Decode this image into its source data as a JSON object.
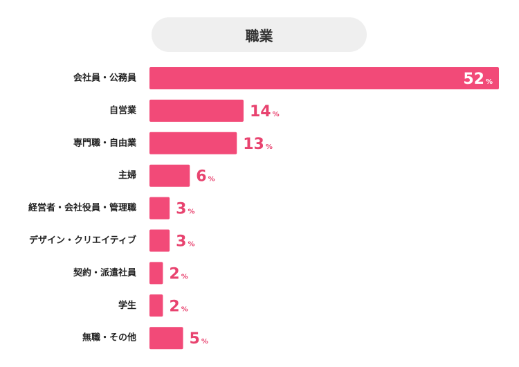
{
  "chart_data": {
    "type": "bar",
    "orientation": "horizontal",
    "title": "職業",
    "categories": [
      "会社員・公務員",
      "自営業",
      "専門職・自由業",
      "主婦",
      "経営者・会社役員・管理職",
      "デザイン・クリエイティブ",
      "契約・派遣社員",
      "学生",
      "無職・その他"
    ],
    "values": [
      52,
      14,
      13,
      6,
      3,
      3,
      2,
      2,
      5
    ],
    "unit": "%",
    "xlim": [
      0,
      52
    ],
    "grid": false,
    "legend": "none",
    "colors": {
      "bar": "#f24a78",
      "value_label": "#e8436f",
      "value_label_inside": "#ffffff",
      "title_background": "#efefef"
    }
  }
}
